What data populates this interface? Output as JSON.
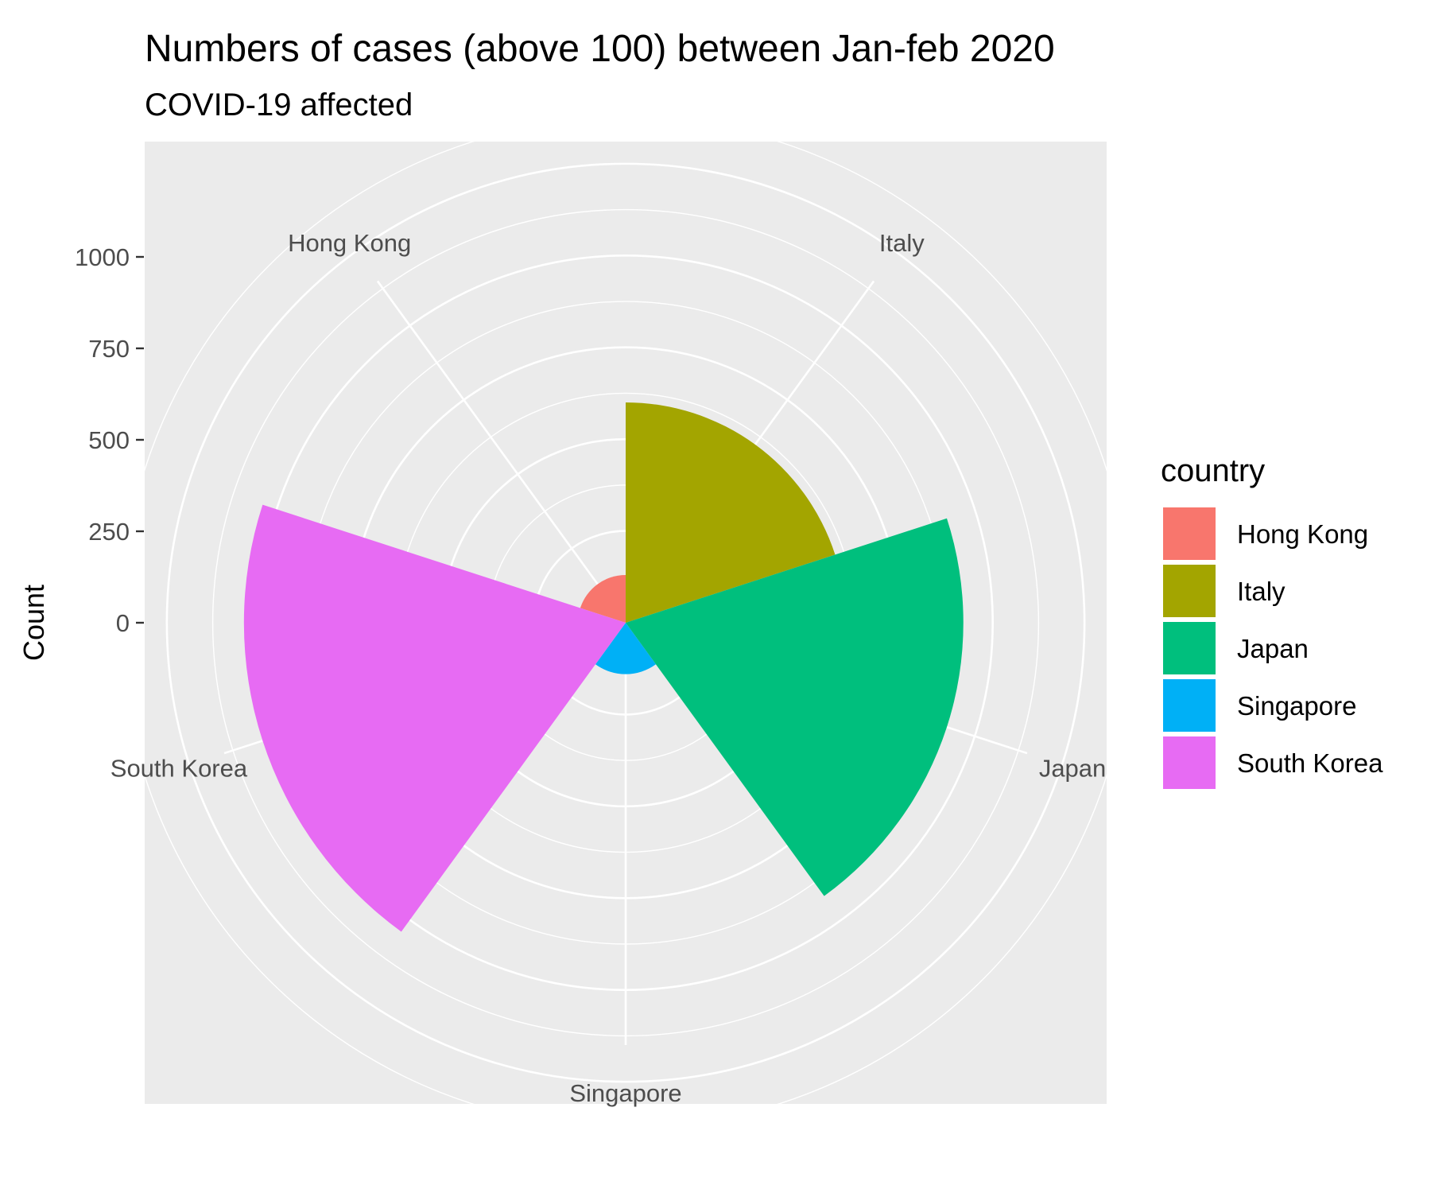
{
  "chart_data": {
    "type": "pie",
    "subtype": "polar-area (coxcomb)",
    "title": "Numbers of cases (above 100) between Jan-feb 2020",
    "subtitle": "COVID-19 affected",
    "ylabel": "Count",
    "ylim": [
      0,
      1000
    ],
    "yticks": [
      "1000",
      "750",
      "500",
      "250",
      "0"
    ],
    "categories": [
      "Hong Kong",
      "Italy",
      "Japan",
      "Singapore",
      "South Korea"
    ],
    "values": [
      130,
      600,
      920,
      140,
      1040
    ],
    "colors": [
      "#F8766D",
      "#A3A500",
      "#00BF7D",
      "#00B0F6",
      "#E76BF3"
    ],
    "legend": {
      "title": "country",
      "position": "right",
      "entries": [
        "Hong Kong",
        "Italy",
        "Japan",
        "Singapore",
        "South Korea"
      ]
    },
    "grid": true,
    "panel_background": "#EBEBEB"
  }
}
